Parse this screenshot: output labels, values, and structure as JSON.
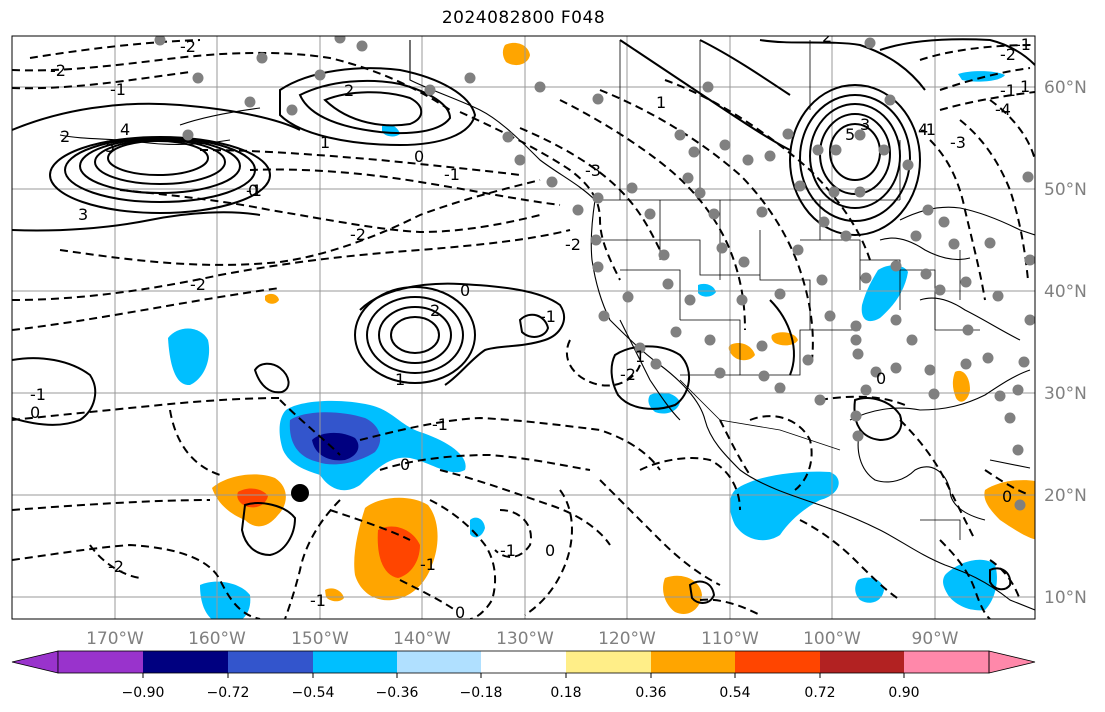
{
  "title": "2024082800 F048",
  "axes": {
    "lon_labels": [
      "170°W",
      "160°W",
      "150°W",
      "140°W",
      "130°W",
      "120°W",
      "110°W",
      "100°W",
      "90°W"
    ],
    "lat_labels": [
      "60°N",
      "50°N",
      "40°N",
      "30°N",
      "20°N",
      "10°N"
    ]
  },
  "colorbar": {
    "tick_labels": [
      "−0.90",
      "−0.72",
      "−0.54",
      "−0.36",
      "−0.18",
      "0.18",
      "0.36",
      "0.54",
      "0.72",
      "0.90"
    ],
    "colors": [
      "#9933cc",
      "#000080",
      "#3355cc",
      "#00bfff",
      "#b0e0ff",
      "#ffffff",
      "#ffee88",
      "#ffa500",
      "#ff4500",
      "#b22222",
      "#ff88aa"
    ]
  },
  "contour_labels": [
    "-2",
    "-1",
    "-2",
    "2",
    "3",
    "4",
    "5",
    "1",
    "-1",
    "0",
    "-2",
    "-3",
    "-2",
    "-1",
    "2",
    "1",
    "0",
    "2",
    "3",
    "4",
    "5",
    "-4",
    "-3",
    "-2",
    "-1",
    "0",
    "2",
    "-1",
    "0",
    "1",
    "-1",
    "-2",
    "-1",
    "1",
    "0",
    "-1",
    "-1",
    "0",
    "-1",
    "0",
    "-2",
    "0",
    "1",
    "-1",
    "-2",
    "-1",
    "0"
  ],
  "colors": {
    "grid": "#999999",
    "contour": "#000000",
    "station_dot": "#808080",
    "axis_label": "#808080"
  }
}
